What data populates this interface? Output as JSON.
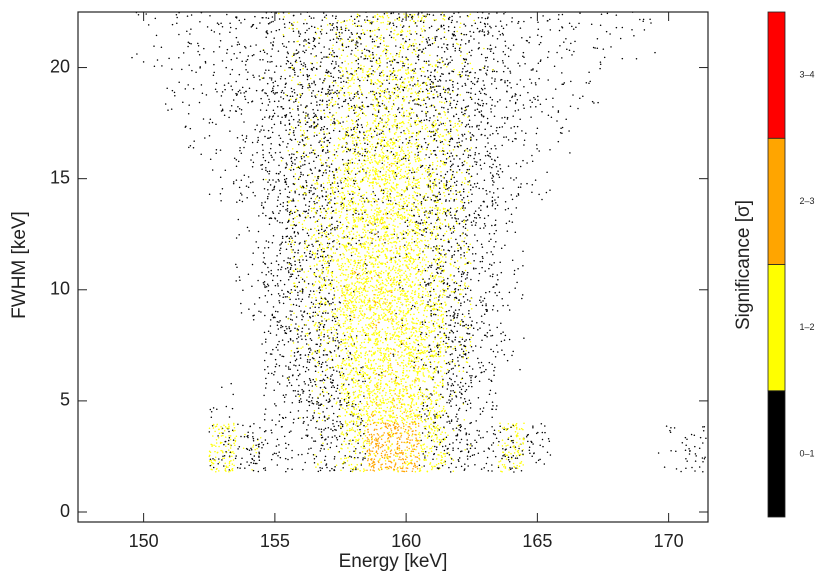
{
  "chart_data": {
    "type": "density-scatter",
    "xlabel": "Energy [keV]",
    "ylabel": "FWHM [keV]",
    "xlim": [
      147.5,
      171.5
    ],
    "ylim": [
      -0.45,
      22.5
    ],
    "xticks": [
      150,
      155,
      160,
      165,
      170
    ],
    "yticks": [
      0,
      5,
      10,
      15,
      20
    ],
    "xbins": [
      147.5,
      148.5,
      149.5,
      150.5,
      151.5,
      152.5,
      153.5,
      154.5,
      155.5,
      156.5,
      157.5,
      158.5,
      159.5,
      160.5,
      161.5,
      162.5,
      163.5,
      164.5,
      165.5,
      166.5,
      167.5,
      168.5,
      169.5,
      170.5,
      171.5
    ],
    "ybins": [
      1.8,
      4,
      6,
      8,
      10,
      12,
      14,
      16,
      18,
      20,
      22.5
    ],
    "z": [
      [
        null,
        null,
        null,
        null,
        null,
        1.3,
        0.6,
        0.3,
        0.2,
        0.6,
        1.2,
        2.3,
        2.2,
        1.3,
        0.6,
        0.3,
        1.2,
        0.3,
        null,
        null,
        null,
        null,
        0.1,
        0.3
      ],
      [
        null,
        null,
        null,
        null,
        null,
        0.1,
        null,
        0.2,
        0.5,
        0.8,
        1.3,
        1.6,
        1.6,
        1.2,
        0.6,
        0.2,
        null,
        null,
        null,
        null,
        null,
        null,
        null,
        null
      ],
      [
        null,
        null,
        null,
        null,
        null,
        null,
        null,
        0.3,
        0.6,
        0.9,
        1.4,
        1.5,
        1.5,
        1.3,
        0.8,
        0.3,
        0.1,
        null,
        null,
        null,
        null,
        null,
        null,
        null
      ],
      [
        null,
        null,
        null,
        null,
        null,
        null,
        0.1,
        0.4,
        0.7,
        1.1,
        1.5,
        1.6,
        1.5,
        1.3,
        0.8,
        0.3,
        0.1,
        null,
        null,
        null,
        null,
        null,
        null,
        null
      ],
      [
        null,
        null,
        null,
        null,
        null,
        null,
        0.1,
        0.4,
        0.8,
        1.2,
        1.5,
        1.5,
        1.5,
        1.2,
        0.8,
        0.3,
        0.1,
        null,
        null,
        null,
        null,
        null,
        null,
        null
      ],
      [
        null,
        null,
        null,
        null,
        null,
        null,
        0.1,
        0.4,
        0.8,
        1.1,
        1.4,
        1.5,
        1.4,
        1.1,
        0.8,
        0.4,
        0.1,
        null,
        null,
        null,
        null,
        null,
        null,
        null
      ],
      [
        null,
        null,
        null,
        null,
        null,
        0.1,
        0.2,
        0.5,
        0.8,
        1.0,
        1.3,
        1.5,
        1.4,
        1.1,
        0.8,
        0.4,
        0.2,
        0.1,
        null,
        null,
        null,
        null,
        null,
        null
      ],
      [
        null,
        null,
        null,
        null,
        0.1,
        0.1,
        0.2,
        0.4,
        0.8,
        0.9,
        1.1,
        1.3,
        1.3,
        1.0,
        0.8,
        0.4,
        0.2,
        0.1,
        0.1,
        null,
        null,
        null,
        null,
        null
      ],
      [
        null,
        null,
        null,
        0.1,
        0.1,
        0.2,
        0.3,
        0.5,
        0.7,
        0.8,
        1.0,
        1.2,
        1.2,
        0.9,
        0.7,
        0.5,
        0.3,
        0.2,
        0.1,
        0.1,
        null,
        null,
        null,
        null
      ],
      [
        null,
        null,
        0.1,
        0.1,
        0.2,
        0.2,
        0.3,
        0.5,
        0.7,
        0.8,
        0.9,
        1.1,
        1.1,
        0.9,
        0.7,
        0.5,
        0.3,
        0.2,
        0.2,
        0.1,
        0.1,
        0.1,
        null,
        null
      ]
    ],
    "colorbar": {
      "label": "Significance [σ]",
      "levels": [
        0,
        1,
        2,
        3,
        4
      ],
      "labels": [
        "0–1",
        "1–2",
        "2–3",
        "3–4"
      ],
      "colors": [
        "#000000",
        "#ffff00",
        "#ffa500",
        "#ff0000"
      ]
    }
  }
}
